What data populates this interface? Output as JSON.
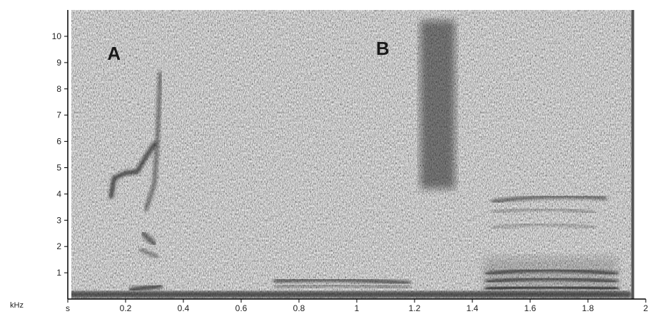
{
  "chart_data": {
    "type": "heatmap",
    "title": "",
    "xlabel": "s",
    "ylabel": "kHz",
    "xlim": [
      0,
      2
    ],
    "ylim": [
      0,
      11
    ],
    "x_ticks": [
      "s",
      "0.2",
      "0.4",
      "0.6",
      "0.8",
      "1",
      "1.2",
      "1.4",
      "1.6",
      "1.8",
      "2"
    ],
    "x_tick_values": [
      0,
      0.2,
      0.4,
      0.6,
      0.8,
      1.0,
      1.2,
      1.4,
      1.6,
      1.8,
      2.0
    ],
    "y_ticks": [
      "1",
      "2",
      "3",
      "4",
      "5",
      "6",
      "7",
      "8",
      "9",
      "10"
    ],
    "y_tick_values": [
      1,
      2,
      3,
      4,
      5,
      6,
      7,
      8,
      9,
      10
    ],
    "y_unit": "kHz",
    "grid": false,
    "annotations": [
      {
        "text": "A",
        "x": 0.16,
        "y": 9.1
      },
      {
        "text": "B",
        "x": 1.09,
        "y": 9.3
      }
    ],
    "colors": {
      "background": "#d6d6d6",
      "energy": "#1a1a1a"
    }
  }
}
